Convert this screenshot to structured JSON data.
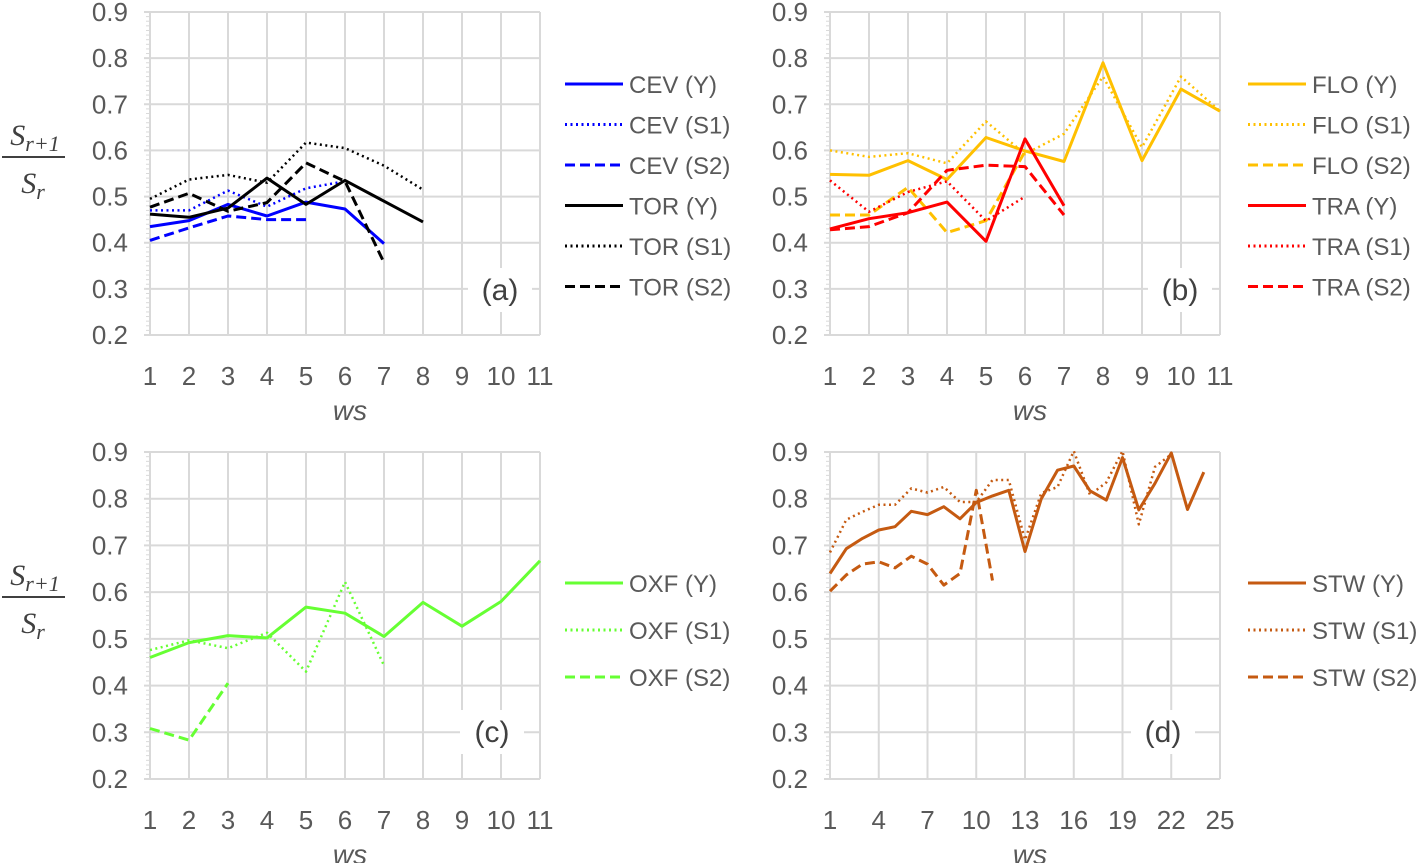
{
  "chart_data": [
    {
      "type": "line",
      "panel_label": "(a)",
      "xlabel": "ws",
      "ylabel": "S_{r+1} / S_r",
      "ylim": [
        0.2,
        0.9
      ],
      "yticks": [
        "0.2",
        "0.3",
        "0.4",
        "0.5",
        "0.6",
        "0.7",
        "0.8",
        "0.9"
      ],
      "xlim": [
        1,
        11
      ],
      "xticks": [
        "1",
        "2",
        "3",
        "4",
        "5",
        "6",
        "7",
        "8",
        "9",
        "10",
        "11"
      ],
      "grid": true,
      "legend_position": "right",
      "series": [
        {
          "name": "CEV (Y)",
          "color": "#0000ff",
          "style": "solid",
          "x": [
            1,
            2,
            3,
            4,
            5,
            6,
            7
          ],
          "values": [
            0.435,
            0.448,
            0.483,
            0.458,
            0.488,
            0.473,
            0.398
          ]
        },
        {
          "name": "CEV (S1)",
          "color": "#0000ff",
          "style": "dotted",
          "x": [
            1,
            2,
            3,
            4,
            5,
            6
          ],
          "values": [
            0.47,
            0.47,
            0.513,
            0.478,
            0.518,
            0.533
          ]
        },
        {
          "name": "CEV (S2)",
          "color": "#0000ff",
          "style": "dashed",
          "x": [
            1,
            2,
            3,
            4,
            5
          ],
          "values": [
            0.405,
            0.432,
            0.458,
            0.45,
            0.45
          ]
        },
        {
          "name": "TOR (Y)",
          "color": "#000000",
          "style": "solid",
          "x": [
            1,
            2,
            3,
            4,
            5,
            6,
            7,
            8
          ],
          "values": [
            0.462,
            0.455,
            0.475,
            0.54,
            0.483,
            0.535,
            0.49,
            0.445
          ]
        },
        {
          "name": "TOR (S1)",
          "color": "#000000",
          "style": "dotted",
          "x": [
            1,
            2,
            3,
            4,
            5,
            6,
            7,
            8
          ],
          "values": [
            0.495,
            0.537,
            0.547,
            0.53,
            0.617,
            0.605,
            0.567,
            0.515
          ]
        },
        {
          "name": "TOR (S2)",
          "color": "#000000",
          "style": "dashed",
          "x": [
            1,
            2,
            3,
            4,
            5,
            6,
            7
          ],
          "values": [
            0.477,
            0.507,
            0.468,
            0.487,
            0.573,
            0.533,
            0.357
          ]
        }
      ]
    },
    {
      "type": "line",
      "panel_label": "(b)",
      "xlabel": "ws",
      "ylabel": "",
      "ylim": [
        0.2,
        0.9
      ],
      "yticks": [
        "0.2",
        "0.3",
        "0.4",
        "0.5",
        "0.6",
        "0.7",
        "0.8",
        "0.9"
      ],
      "xlim": [
        1,
        11
      ],
      "xticks": [
        "1",
        "2",
        "3",
        "4",
        "5",
        "6",
        "7",
        "8",
        "9",
        "10",
        "11"
      ],
      "grid": true,
      "legend_position": "right",
      "series": [
        {
          "name": "FLO (Y)",
          "color": "#ffc000",
          "style": "solid",
          "x": [
            1,
            2,
            3,
            4,
            5,
            6,
            7,
            8,
            9,
            10,
            11
          ],
          "values": [
            0.548,
            0.546,
            0.578,
            0.537,
            0.628,
            0.599,
            0.576,
            0.79,
            0.578,
            0.733,
            0.685
          ]
        },
        {
          "name": "FLO (S1)",
          "color": "#ffc000",
          "style": "dotted",
          "x": [
            1,
            2,
            3,
            4,
            5,
            6,
            7,
            8,
            9,
            10,
            11
          ],
          "values": [
            0.6,
            0.586,
            0.594,
            0.572,
            0.663,
            0.592,
            0.636,
            0.76,
            0.607,
            0.76,
            0.685
          ]
        },
        {
          "name": "FLO (S2)",
          "color": "#ffc000",
          "style": "dashed",
          "x": [
            1,
            2,
            3,
            4,
            5,
            6
          ],
          "values": [
            0.46,
            0.46,
            0.52,
            0.422,
            0.448,
            0.598
          ]
        },
        {
          "name": "TRA (Y)",
          "color": "#ff0000",
          "style": "solid",
          "x": [
            1,
            2,
            3,
            4,
            5,
            6,
            7
          ],
          "values": [
            0.43,
            0.452,
            0.465,
            0.488,
            0.403,
            0.625,
            0.48
          ]
        },
        {
          "name": "TRA (S1)",
          "color": "#ff0000",
          "style": "dotted",
          "x": [
            1,
            2,
            3,
            4,
            5,
            6
          ],
          "values": [
            0.535,
            0.467,
            0.51,
            0.533,
            0.447,
            0.5
          ]
        },
        {
          "name": "TRA (S2)",
          "color": "#ff0000",
          "style": "dashed",
          "x": [
            1,
            2,
            3,
            4,
            5,
            6,
            7
          ],
          "values": [
            0.428,
            0.435,
            0.465,
            0.557,
            0.568,
            0.565,
            0.46
          ]
        }
      ]
    },
    {
      "type": "line",
      "panel_label": "(c)",
      "xlabel": "ws",
      "ylabel": "S_{r+1} / S_r",
      "ylim": [
        0.2,
        0.9
      ],
      "yticks": [
        "0.2",
        "0.3",
        "0.4",
        "0.5",
        "0.6",
        "0.7",
        "0.8",
        "0.9"
      ],
      "xlim": [
        1,
        11
      ],
      "xticks": [
        "1",
        "2",
        "3",
        "4",
        "5",
        "6",
        "7",
        "8",
        "9",
        "10",
        "11"
      ],
      "grid": true,
      "legend_position": "right",
      "series": [
        {
          "name": "OXF (Y)",
          "color": "#66ff33",
          "style": "solid",
          "x": [
            1,
            2,
            3,
            4,
            5,
            6,
            7,
            8,
            9,
            10,
            11
          ],
          "values": [
            0.46,
            0.492,
            0.507,
            0.502,
            0.568,
            0.555,
            0.505,
            0.578,
            0.527,
            0.58,
            0.667
          ]
        },
        {
          "name": "OXF (S1)",
          "color": "#66ff33",
          "style": "dotted",
          "x": [
            1,
            2,
            3,
            4,
            5,
            6,
            7
          ],
          "values": [
            0.476,
            0.497,
            0.48,
            0.513,
            0.43,
            0.622,
            0.443
          ]
        },
        {
          "name": "OXF (S2)",
          "color": "#66ff33",
          "style": "dashed",
          "x": [
            1,
            2,
            3
          ],
          "values": [
            0.308,
            0.283,
            0.405
          ]
        }
      ]
    },
    {
      "type": "line",
      "panel_label": "(d)",
      "xlabel": "ws",
      "ylabel": "",
      "ylim": [
        0.2,
        0.9
      ],
      "yticks": [
        "0.2",
        "0.3",
        "0.4",
        "0.5",
        "0.6",
        "0.7",
        "0.8",
        "0.9"
      ],
      "xlim": [
        1,
        25
      ],
      "xticks": [
        "1",
        "4",
        "7",
        "10",
        "13",
        "16",
        "19",
        "22",
        "25"
      ],
      "grid": true,
      "legend_position": "right",
      "series": [
        {
          "name": "STW (Y)",
          "color": "#c55a11",
          "style": "solid",
          "x": [
            1,
            2,
            3,
            4,
            5,
            6,
            7,
            8,
            9,
            10,
            11,
            12,
            13,
            14,
            15,
            16,
            17,
            18,
            19,
            20,
            21,
            22,
            23,
            24
          ],
          "values": [
            0.64,
            0.693,
            0.715,
            0.733,
            0.74,
            0.773,
            0.766,
            0.783,
            0.757,
            0.792,
            0.806,
            0.818,
            0.687,
            0.8,
            0.861,
            0.87,
            0.817,
            0.797,
            0.888,
            0.776,
            0.833,
            0.898,
            0.777,
            0.857
          ]
        },
        {
          "name": "STW (S1)",
          "color": "#c55a11",
          "style": "dotted",
          "x": [
            1,
            2,
            3,
            4,
            5,
            6,
            7,
            8,
            9,
            10,
            11,
            12,
            13,
            14,
            15,
            16,
            17,
            18,
            19,
            20,
            21,
            22
          ],
          "values": [
            0.685,
            0.755,
            0.772,
            0.787,
            0.787,
            0.822,
            0.813,
            0.825,
            0.793,
            0.793,
            0.84,
            0.84,
            0.712,
            0.812,
            0.825,
            0.902,
            0.808,
            0.835,
            0.902,
            0.745,
            0.868,
            0.895
          ]
        },
        {
          "name": "STW (S2)",
          "color": "#c55a11",
          "style": "dashed",
          "x": [
            1,
            2,
            3,
            4,
            5,
            6,
            7,
            8,
            9,
            10,
            11
          ],
          "values": [
            0.602,
            0.637,
            0.66,
            0.665,
            0.652,
            0.677,
            0.66,
            0.615,
            0.64,
            0.818,
            0.625
          ]
        }
      ]
    }
  ]
}
